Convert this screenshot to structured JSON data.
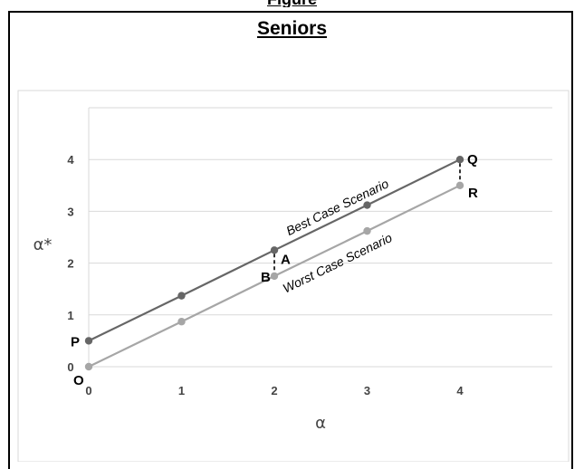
{
  "page": {
    "top_fragment_text": "Figure"
  },
  "chart_data": {
    "type": "line",
    "title": "Seniors",
    "xlabel": "α",
    "ylabel": "α*",
    "xlim": [
      0,
      5
    ],
    "ylim": [
      0,
      5
    ],
    "x_ticks": [
      0,
      1,
      2,
      3,
      4
    ],
    "y_ticks": [
      0,
      1,
      2,
      3,
      4
    ],
    "grid": "horizontal",
    "series": [
      {
        "key": "best",
        "annotation": "Best Case Scenario",
        "color": "#666666",
        "points": [
          [
            0,
            0.5
          ],
          [
            1,
            1.37
          ],
          [
            2,
            2.25
          ],
          [
            3,
            3.12
          ],
          [
            4,
            4.0
          ]
        ]
      },
      {
        "key": "worst",
        "annotation": "Worst Case Scenario",
        "color": "#a6a6a6",
        "points": [
          [
            0,
            0.0
          ],
          [
            1,
            0.87
          ],
          [
            2,
            1.75
          ],
          [
            3,
            2.62
          ],
          [
            4,
            3.5
          ]
        ]
      }
    ],
    "point_labels": [
      {
        "text": "P",
        "x": 0,
        "y": 0.5
      },
      {
        "text": "O",
        "x": 0,
        "y": 0.0
      },
      {
        "text": "A",
        "x": 2,
        "y": 2.25
      },
      {
        "text": "B",
        "x": 2,
        "y": 1.75
      },
      {
        "text": "Q",
        "x": 4,
        "y": 4.0
      },
      {
        "text": "R",
        "x": 4,
        "y": 3.5
      }
    ],
    "dashed_connectors": [
      {
        "from": "A",
        "to": "B",
        "x": 2,
        "y1": 2.25,
        "y2": 1.75
      },
      {
        "from": "Q",
        "to": "R",
        "x": 4,
        "y1": 4.0,
        "y2": 3.5
      }
    ]
  }
}
